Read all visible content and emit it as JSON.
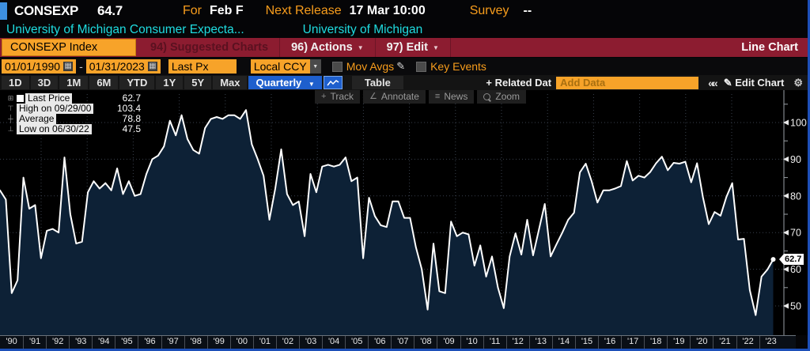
{
  "header": {
    "ticker": "CONSEXP",
    "last_value": "64.7",
    "for_label": "For",
    "for_value": "Feb F",
    "next_release_label": "Next Release",
    "next_release_value": "17 Mar 10:00",
    "survey_label": "Survey",
    "survey_value": "--",
    "description": "University of Michigan Consumer Expecta...",
    "source": "University of Michigan"
  },
  "menubar": {
    "security": "CONSEXP Index",
    "suggested": "94) Suggested Charts",
    "actions": "96) Actions",
    "edit": "97) Edit",
    "chart_type": "Line Chart"
  },
  "toolbar": {
    "date_from": "01/01/1990",
    "date_to": "01/31/2023",
    "px_field": "Last Px",
    "currency": "Local CCY",
    "mov_avgs": "Mov Avgs",
    "key_events": "Key Events"
  },
  "tabbar": {
    "ranges": [
      "1D",
      "3D",
      "1M",
      "6M",
      "YTD",
      "1Y",
      "5Y",
      "Max"
    ],
    "period": "Quarterly",
    "table": "Table",
    "related": "Related Dat",
    "add_data_placeholder": "Add Data",
    "edit_chart": "Edit Chart"
  },
  "tools": {
    "track": "Track",
    "annotate": "Annotate",
    "news": "News",
    "zoom": "Zoom"
  },
  "legend": {
    "rows": [
      {
        "icon": "swatch",
        "label": "Last Price",
        "value": "62.7"
      },
      {
        "icon": "high",
        "label": "High on 09/29/00",
        "value": "103.4"
      },
      {
        "icon": "avg",
        "label": "Average",
        "value": "78.8"
      },
      {
        "icon": "low",
        "label": "Low on 06/30/22",
        "value": "47.5"
      }
    ]
  },
  "icons": {
    "caret_down": "▼",
    "collapse": "««",
    "pencil": "✎",
    "gear": "⚙",
    "plus": "+",
    "angle": "∠",
    "news": "≡",
    "calendar": "▦",
    "expander": "⊞",
    "high_marker": "⊤",
    "avg_marker": "┼",
    "low_marker": "⊥",
    "track": "+"
  },
  "colors": {
    "accent_orange": "#f7a329",
    "text_orange": "#f89d1c",
    "cyan": "#1fdce0",
    "menubar_red": "#8c1c30",
    "selected_blue": "#1e5fcd",
    "area_fill": "#0d2136",
    "line": "#ffffff",
    "grid": "#39414d",
    "border_blue": "#1d4fb8"
  },
  "chart_data": {
    "type": "area",
    "title": "CONSEXP Index - University of Michigan Consumer Expectations",
    "frequency": "quarterly",
    "x_start": "1990-Q1",
    "x_end": "2023-Q1",
    "ylim": [
      44,
      108
    ],
    "y_ticks": [
      100,
      90,
      80,
      70,
      60,
      50
    ],
    "x_labels": [
      "'90",
      "'91",
      "'92",
      "'93",
      "'94",
      "'95",
      "'96",
      "'97",
      "'98",
      "'99",
      "'00",
      "'01",
      "'02",
      "'03",
      "'04",
      "'05",
      "'06",
      "'07",
      "'08",
      "'09",
      "'10",
      "'11",
      "'12",
      "'13",
      "'14",
      "'15",
      "'16",
      "'17",
      "'18",
      "'19",
      "'20",
      "'21",
      "'22",
      "'23"
    ],
    "stats": {
      "last": 62.7,
      "high": 103.4,
      "high_date": "09/29/00",
      "average": 78.8,
      "low": 47.5,
      "low_date": "06/30/22"
    },
    "values": [
      81.5,
      79.0,
      53.5,
      57.0,
      85.0,
      76.5,
      77.5,
      63.0,
      70.5,
      71.0,
      70.0,
      90.5,
      75.0,
      67.0,
      67.5,
      81.0,
      84.0,
      82.0,
      83.5,
      81.5,
      87.5,
      80.5,
      84.0,
      80.0,
      80.5,
      86.0,
      90.0,
      91.0,
      93.5,
      100.5,
      96.5,
      102.0,
      95.5,
      92.5,
      91.5,
      98.5,
      101.0,
      101.5,
      101.0,
      102.0,
      102.0,
      101.0,
      103.4,
      94.0,
      90.0,
      85.5,
      73.5,
      82.0,
      92.7,
      80.5,
      77.5,
      78.5,
      69.0,
      86.0,
      81.0,
      88.0,
      88.5,
      88.0,
      88.5,
      90.5,
      84.0,
      85.0,
      63.0,
      79.5,
      74.5,
      72.0,
      71.5,
      78.5,
      78.5,
      74.0,
      74.0,
      66.0,
      60.0,
      49.0,
      67.0,
      54.0,
      53.5,
      73.0,
      69.0,
      70.0,
      69.5,
      61.0,
      66.5,
      58.0,
      63.5,
      55.0,
      49.4,
      63.5,
      69.8,
      64.0,
      73.5,
      63.8,
      70.8,
      77.8,
      63.5,
      66.8,
      70.0,
      73.5,
      75.4,
      86.4,
      88.8,
      84.0,
      78.2,
      81.5,
      81.5,
      82.0,
      82.7,
      89.5,
      84.2,
      85.5,
      85.0,
      86.5,
      88.9,
      90.7,
      87.0,
      89.0,
      88.8,
      89.3,
      83.7,
      88.9,
      79.7,
      72.3,
      75.6,
      74.6,
      79.7,
      83.5,
      68.1,
      68.3,
      54.3,
      47.5,
      58.0,
      59.9,
      62.7
    ]
  }
}
